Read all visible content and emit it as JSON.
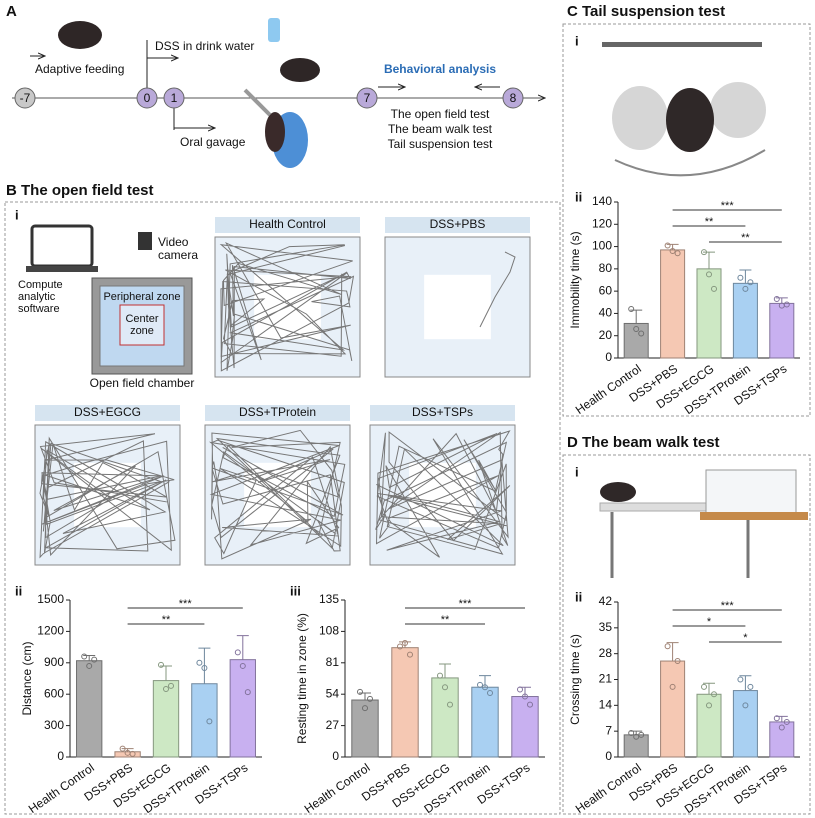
{
  "panel_a": {
    "label": "A",
    "adaptive": "Adaptive feeding",
    "dss": "DSS in drink water",
    "gavage": "Oral gavage",
    "behavior": "Behavioral analysis",
    "days": [
      "-7",
      "0",
      "1",
      "7",
      "8"
    ],
    "tests": [
      "The open field test",
      "The beam walk test",
      "Tail suspension test"
    ]
  },
  "panel_b": {
    "title": "B The open field test",
    "i": "i",
    "ii": "ii",
    "iii": "iii",
    "software": [
      "Compute",
      "analytic",
      "software"
    ],
    "camera": [
      "Video",
      "camera"
    ],
    "peripheral": "Peripheral zone",
    "center": [
      "Center",
      "zone"
    ],
    "chamber": "Open field chamber",
    "groups": [
      "Health Control",
      "DSS+PBS",
      "DSS+EGCG",
      "DSS+TProtein",
      "DSS+TSPs"
    ]
  },
  "panel_c": {
    "title": "C Tail suspension test",
    "i": "i",
    "ii": "ii"
  },
  "panel_d": {
    "title": "D The beam walk test",
    "i": "i",
    "ii": "ii"
  },
  "chart_data": [
    {
      "type": "bar",
      "ylabel": "Distance (cm)",
      "categories": [
        "Health Control",
        "DSS+PBS",
        "DSS+EGCG",
        "DSS+TProtein",
        "DSS+TSPs"
      ],
      "values": [
        920,
        50,
        730,
        700,
        930
      ],
      "errors": [
        50,
        30,
        140,
        340,
        230
      ],
      "points": [
        [
          960,
          870,
          930
        ],
        [
          80,
          40,
          30
        ],
        [
          880,
          650,
          680
        ],
        [
          900,
          850,
          340
        ],
        [
          1000,
          870,
          620
        ]
      ],
      "colors": [
        "#a9a9a9",
        "#f5c8b3",
        "#cde8c4",
        "#a9d0f2",
        "#c8b0f0"
      ],
      "ylim": [
        0,
        1500
      ],
      "yticks": [
        0,
        300,
        600,
        900,
        1200,
        1500
      ],
      "significance": [
        {
          "label": "**",
          "from": "DSS+PBS",
          "to": "DSS+TProtein"
        },
        {
          "label": "***",
          "from": "DSS+PBS",
          "to": "DSS+TSPs"
        }
      ]
    },
    {
      "type": "bar",
      "ylabel": "Resting time in zone (%)",
      "categories": [
        "Health Control",
        "DSS+PBS",
        "DSS+EGCG",
        "DSS+TProtein",
        "DSS+TSPs"
      ],
      "values": [
        49,
        94,
        68,
        60,
        52
      ],
      "errors": [
        6,
        5,
        12,
        10,
        8
      ],
      "points": [
        [
          56,
          42,
          50
        ],
        [
          95,
          98,
          88
        ],
        [
          70,
          60,
          45
        ],
        [
          62,
          60,
          55
        ],
        [
          58,
          52,
          45
        ]
      ],
      "colors": [
        "#a9a9a9",
        "#f5c8b3",
        "#cde8c4",
        "#a9d0f2",
        "#c8b0f0"
      ],
      "ylim": [
        0,
        135
      ],
      "yticks": [
        0,
        27,
        54,
        81,
        108,
        135
      ],
      "significance": [
        {
          "label": "**",
          "from": "DSS+PBS",
          "to": "DSS+TProtein"
        },
        {
          "label": "***",
          "from": "DSS+PBS",
          "to": "DSS+TSPs"
        }
      ]
    },
    {
      "type": "bar",
      "ylabel": "Immobility time (s)",
      "categories": [
        "Health Control",
        "DSS+PBS",
        "DSS+EGCG",
        "DSS+TProtein",
        "DSS+TSPs"
      ],
      "values": [
        31,
        97,
        80,
        67,
        49
      ],
      "errors": [
        12,
        5,
        15,
        12,
        5
      ],
      "points": [
        [
          44,
          26,
          22
        ],
        [
          101,
          96,
          94
        ],
        [
          95,
          75,
          62
        ],
        [
          72,
          62,
          68
        ],
        [
          53,
          47,
          48
        ]
      ],
      "colors": [
        "#a9a9a9",
        "#f5c8b3",
        "#cde8c4",
        "#a9d0f2",
        "#c8b0f0"
      ],
      "ylim": [
        0,
        140
      ],
      "yticks": [
        0,
        20,
        40,
        60,
        80,
        100,
        120,
        140
      ],
      "significance": [
        {
          "label": "**",
          "from": "DSS+EGCG",
          "to": "DSS+TSPs"
        },
        {
          "label": "**",
          "from": "DSS+PBS",
          "to": "DSS+TProtein"
        },
        {
          "label": "***",
          "from": "DSS+PBS",
          "to": "DSS+TSPs"
        }
      ]
    },
    {
      "type": "bar",
      "ylabel": "Crossing time (s)",
      "categories": [
        "Health Control",
        "DSS+PBS",
        "DSS+EGCG",
        "DSS+TProtein",
        "DSS+TSPs"
      ],
      "values": [
        6,
        26,
        17,
        18,
        9.5
      ],
      "errors": [
        1,
        5,
        3,
        4,
        1.5
      ],
      "points": [
        [
          6.5,
          5.5,
          6
        ],
        [
          30,
          19,
          26
        ],
        [
          19,
          14,
          17
        ],
        [
          21,
          14,
          19
        ],
        [
          10.5,
          8,
          9.5
        ]
      ],
      "colors": [
        "#a9a9a9",
        "#f5c8b3",
        "#cde8c4",
        "#a9d0f2",
        "#c8b0f0"
      ],
      "ylim": [
        0,
        42
      ],
      "yticks": [
        0,
        7,
        14,
        21,
        28,
        35,
        42
      ],
      "significance": [
        {
          "label": "*",
          "from": "DSS+EGCG",
          "to": "DSS+TSPs"
        },
        {
          "label": "*",
          "from": "DSS+PBS",
          "to": "DSS+TProtein"
        },
        {
          "label": "***",
          "from": "DSS+PBS",
          "to": "DSS+TSPs"
        }
      ]
    }
  ]
}
